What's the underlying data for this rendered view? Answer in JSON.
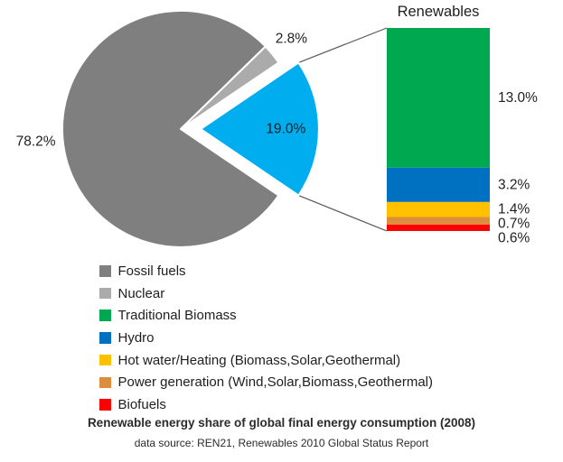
{
  "chart_data": {
    "type": "pie",
    "title": "Renewable energy share of global final energy consumption (2008)",
    "source_note": "data source: REN21, Renewables 2010 Global Status Report",
    "breakout_title": "Renewables",
    "legend_position": "bottom-left",
    "pie_slices": [
      {
        "label": "Fossil fuels",
        "value": 78.2,
        "display": "78.2%",
        "color": "#7F7F7F",
        "exploded": false
      },
      {
        "label": "Nuclear",
        "value": 2.8,
        "display": "2.8%",
        "color": "#ABABAB",
        "exploded": false
      },
      {
        "label": "Renewables",
        "value": 19.0,
        "display": "19.0%",
        "color": "#00AEEF",
        "exploded": true
      }
    ],
    "breakout_segments": [
      {
        "label": "Traditional Biomass",
        "value": 13.0,
        "display": "13.0%",
        "color": "#00A94F"
      },
      {
        "label": "Hydro",
        "value": 3.2,
        "display": "3.2%",
        "color": "#0070C0"
      },
      {
        "label": "Hot water/Heating (Biomass,Solar,Geothermal)",
        "value": 1.4,
        "display": "1.4%",
        "color": "#FFC000"
      },
      {
        "label": "Power generation (Wind,Solar,Biomass,Geothermal)",
        "value": 0.7,
        "display": "0.7%",
        "color": "#DE8D3C"
      },
      {
        "label": "Biofuels",
        "value": 0.6,
        "display": "0.6%",
        "color": "#FE0000"
      }
    ],
    "legend": [
      {
        "label": "Fossil fuels",
        "color": "#7F7F7F"
      },
      {
        "label": "Nuclear",
        "color": "#ABABAB"
      },
      {
        "label": "Traditional Biomass",
        "color": "#00A94F"
      },
      {
        "label": "Hydro",
        "color": "#0070C0"
      },
      {
        "label": "Hot water/Heating (Biomass,Solar,Geothermal)",
        "color": "#FFC000"
      },
      {
        "label": "Power generation (Wind,Solar,Biomass,Geothermal)",
        "color": "#DE8D3C"
      },
      {
        "label": "Biofuels",
        "color": "#FE0000"
      }
    ]
  }
}
